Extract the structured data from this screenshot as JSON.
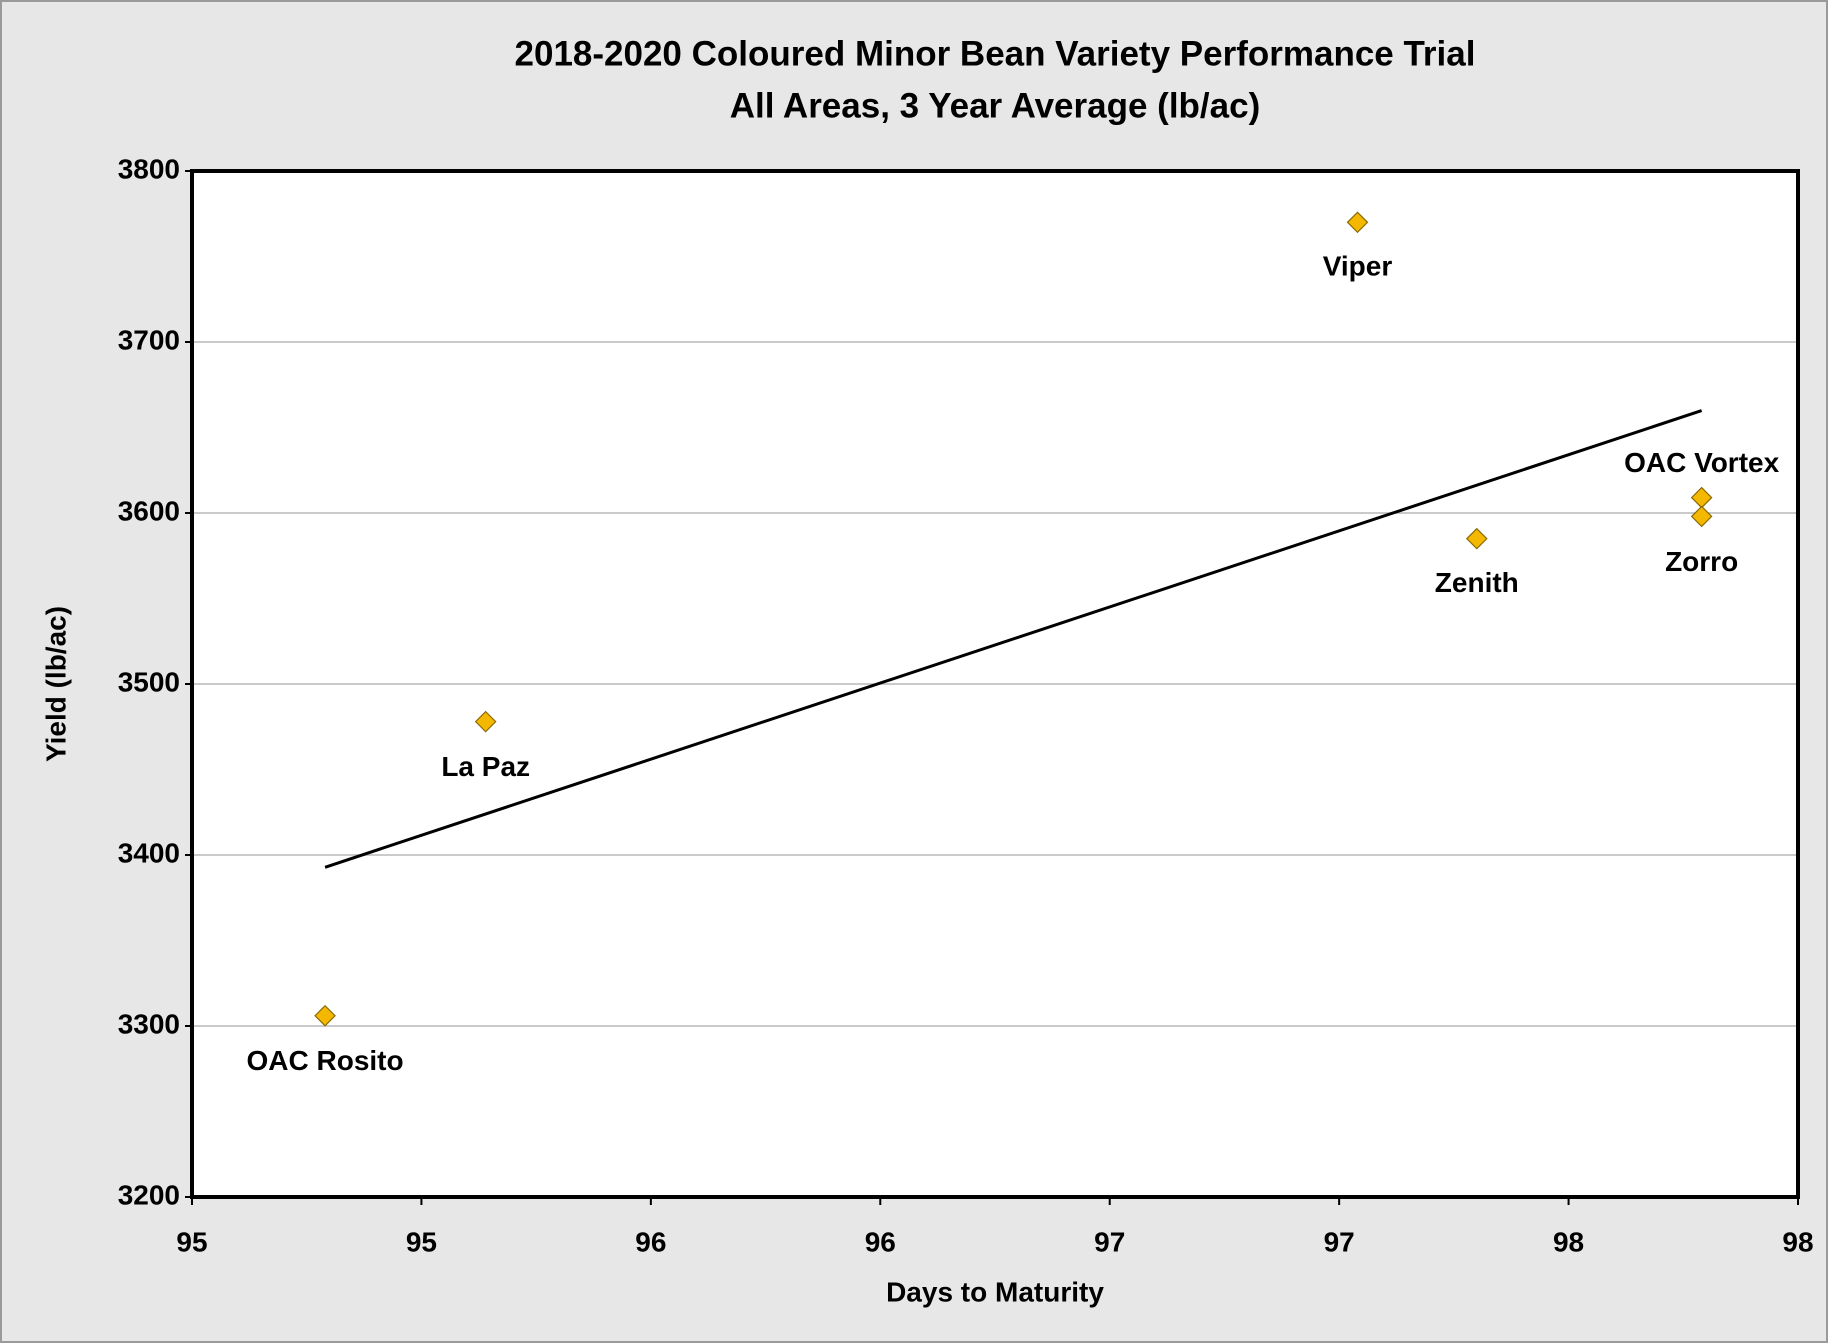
{
  "chart_data": {
    "type": "scatter",
    "title": "2018-2020 Coloured Minor Bean Variety Performance Trial",
    "subtitle": "All Areas, 3 Year Average (lb/ac)",
    "x_label": "Days to Maturity",
    "y_label": "Yield (lb/ac)",
    "series": [
      {
        "color": "#f5b800",
        "labels": [
          "OAC Rosito",
          "La Paz",
          "Viper",
          "Zenith",
          "OAC Vortex",
          "Zorro"
        ],
        "x": [
          95.09,
          95.44,
          97.34,
          97.6,
          98.09,
          98.09
        ],
        "values": [
          3306,
          3478,
          3770,
          3585,
          3609,
          3598
        ]
      }
    ],
    "trendline": "linear",
    "xlim": [
      94.8,
      98.3
    ],
    "xticks": [
      {
        "value": 94.8,
        "label": "95"
      },
      {
        "value": 95.3,
        "label": "95"
      },
      {
        "value": 95.8,
        "label": "96"
      },
      {
        "value": 96.3,
        "label": "96"
      },
      {
        "value": 96.8,
        "label": "97"
      },
      {
        "value": 97.3,
        "label": "97"
      },
      {
        "value": 97.8,
        "label": "98"
      },
      {
        "value": 98.3,
        "label": "98"
      }
    ],
    "ylim": [
      3200,
      3800
    ],
    "yticks": [
      3200,
      3300,
      3400,
      3500,
      3600,
      3700,
      3800
    ],
    "grid": true
  }
}
